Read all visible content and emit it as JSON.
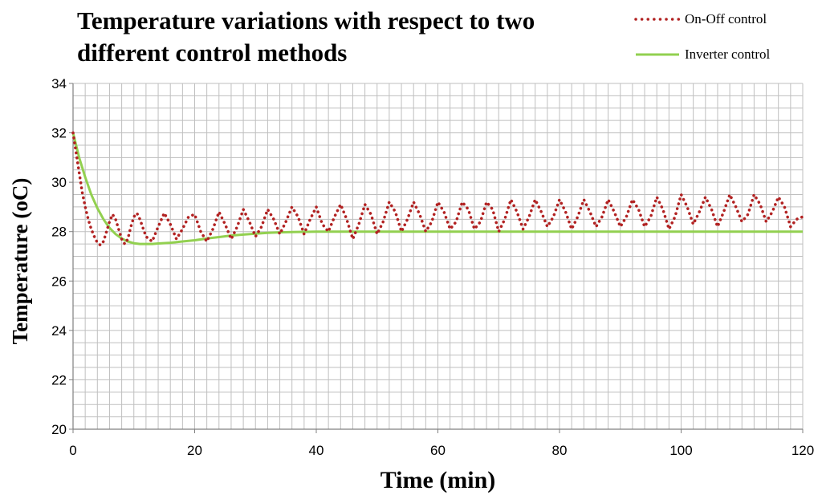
{
  "chart_data": {
    "type": "line",
    "title": "Temperature variations with respect to two different control methods",
    "xlabel": "Time (min)",
    "ylabel": "Temperature (oC)",
    "xlim": [
      0,
      120
    ],
    "ylim": [
      20,
      34
    ],
    "x_ticks": [
      0,
      20,
      40,
      60,
      80,
      100,
      120
    ],
    "y_ticks": [
      20,
      22,
      24,
      26,
      28,
      30,
      32,
      34
    ],
    "grid": true,
    "legend_position": "top-right",
    "series": [
      {
        "name": "On-Off control",
        "style": "dotted",
        "color": "#b22222",
        "x": [
          0,
          0.5,
          1,
          1.5,
          2,
          2.5,
          3,
          3.5,
          4,
          4.5,
          5,
          5.5,
          6,
          6.5,
          7,
          7.5,
          8,
          8.5,
          9,
          9.5,
          10,
          10.5,
          11,
          12,
          13,
          14,
          15,
          16,
          17,
          18,
          19,
          20,
          21,
          22,
          23,
          24,
          25,
          26,
          27,
          28,
          29,
          30,
          31,
          32,
          33,
          34,
          35,
          36,
          37,
          38,
          39,
          40,
          41,
          42,
          43,
          44,
          45,
          46,
          47,
          48,
          49,
          50,
          51,
          52,
          53,
          54,
          55,
          56,
          57,
          58,
          59,
          60,
          61,
          62,
          63,
          64,
          65,
          66,
          67,
          68,
          69,
          70,
          71,
          72,
          73,
          74,
          75,
          76,
          77,
          78,
          79,
          80,
          81,
          82,
          83,
          84,
          85,
          86,
          87,
          88,
          89,
          90,
          91,
          92,
          93,
          94,
          95,
          96,
          97,
          98,
          99,
          100,
          101,
          102,
          103,
          104,
          105,
          106,
          107,
          108,
          109,
          110,
          111,
          112,
          113,
          114,
          115,
          116,
          117,
          118,
          119,
          120
        ],
        "y": [
          32,
          31.2,
          30.4,
          29.6,
          29,
          28.5,
          28.1,
          27.8,
          27.55,
          27.45,
          27.6,
          28,
          28.4,
          28.7,
          28.5,
          28.1,
          27.7,
          27.5,
          27.7,
          28.2,
          28.6,
          28.75,
          28.5,
          27.8,
          27.6,
          28.2,
          28.75,
          28.3,
          27.7,
          28.1,
          28.6,
          28.7,
          28.0,
          27.6,
          28.1,
          28.8,
          28.3,
          27.7,
          28.2,
          28.9,
          28.4,
          27.8,
          28.2,
          28.9,
          28.5,
          27.9,
          28.4,
          29.0,
          28.6,
          27.9,
          28.5,
          29.0,
          28.3,
          28.0,
          28.6,
          29.1,
          28.5,
          27.7,
          28.3,
          29.1,
          28.7,
          27.9,
          28.4,
          29.2,
          28.8,
          28.0,
          28.5,
          29.2,
          28.7,
          28.0,
          28.4,
          29.2,
          28.8,
          28.1,
          28.4,
          29.2,
          28.9,
          28.1,
          28.4,
          29.2,
          28.9,
          28.0,
          28.5,
          29.3,
          28.8,
          28.1,
          28.6,
          29.3,
          28.8,
          28.2,
          28.6,
          29.3,
          28.8,
          28.1,
          28.6,
          29.3,
          28.8,
          28.2,
          28.6,
          29.3,
          28.8,
          28.2,
          28.6,
          29.3,
          28.9,
          28.2,
          28.6,
          29.4,
          28.9,
          28.1,
          28.6,
          29.5,
          29.0,
          28.3,
          28.8,
          29.4,
          28.9,
          28.2,
          28.8,
          29.5,
          29.0,
          28.4,
          28.7,
          29.5,
          29.1,
          28.4,
          28.8,
          29.4,
          29.0,
          28.2,
          28.5,
          28.6
        ],
        "_note": "values estimated from gridlines"
      },
      {
        "name": "Inverter control",
        "style": "solid",
        "color": "#92d050",
        "x": [
          0,
          1,
          2,
          3,
          4,
          5,
          6,
          7,
          8,
          9,
          10,
          11,
          12,
          13,
          14,
          16,
          18,
          20,
          22,
          24,
          26,
          28,
          30,
          32,
          34,
          36,
          38,
          40,
          45,
          50,
          60,
          70,
          80,
          90,
          100,
          110,
          120
        ],
        "y": [
          32,
          31.0,
          30.2,
          29.5,
          28.95,
          28.5,
          28.15,
          27.9,
          27.72,
          27.6,
          27.53,
          27.5,
          27.5,
          27.5,
          27.52,
          27.55,
          27.6,
          27.65,
          27.72,
          27.78,
          27.84,
          27.88,
          27.92,
          27.95,
          27.97,
          27.98,
          27.99,
          28,
          28,
          28,
          28,
          28,
          28,
          28,
          28,
          28,
          28
        ]
      }
    ]
  },
  "icons": {
    "on_off_swatch": "dotted-line-swatch",
    "inverter_swatch": "solid-line-swatch"
  }
}
